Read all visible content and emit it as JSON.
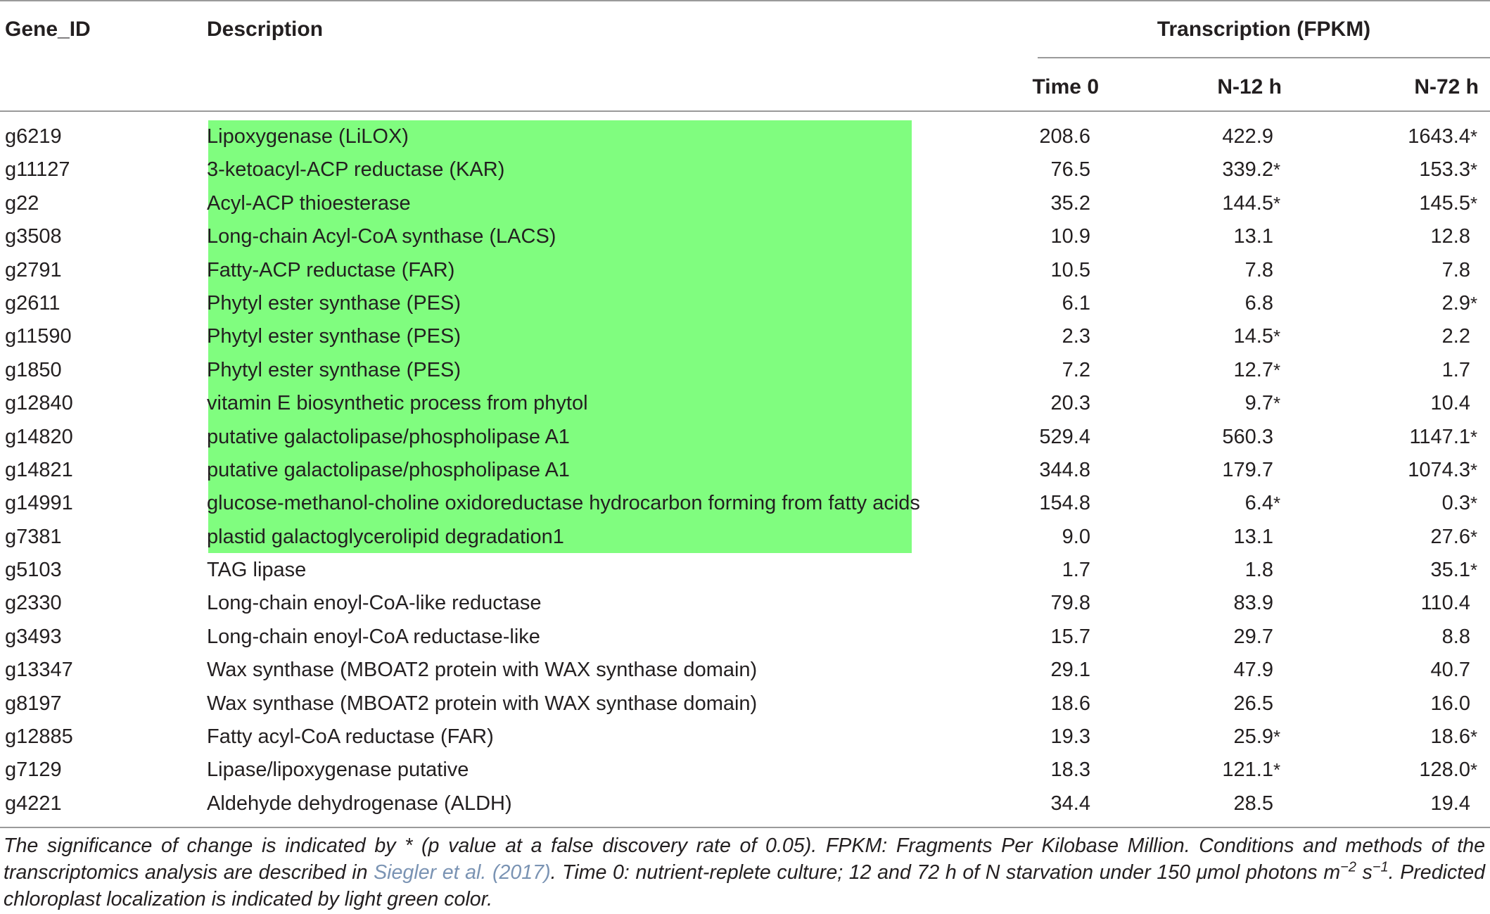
{
  "table": {
    "headers": {
      "gene_id": "Gene_ID",
      "description": "Description",
      "span": "Transcription (FPKM)",
      "time0": "Time 0",
      "n12": "N-12 h",
      "n72": "N-72 h"
    },
    "highlight_color": "#80fd7f",
    "rows": [
      {
        "gene": "g6219",
        "desc": "Lipoxygenase (LiLOX)",
        "t0": "208.6",
        "t0s": "",
        "n12": "422.9",
        "n12s": "",
        "n72": "1643.4",
        "n72s": "*",
        "chloroplast": true
      },
      {
        "gene": "g11127",
        "desc": "3-ketoacyl-ACP reductase (KAR)",
        "t0": "76.5",
        "t0s": "",
        "n12": "339.2",
        "n12s": "*",
        "n72": "153.3",
        "n72s": "*",
        "chloroplast": true
      },
      {
        "gene": "g22",
        "desc": "Acyl-ACP thioesterase",
        "t0": "35.2",
        "t0s": "",
        "n12": "144.5",
        "n12s": "*",
        "n72": "145.5",
        "n72s": "*",
        "chloroplast": true
      },
      {
        "gene": "g3508",
        "desc": "Long-chain Acyl-CoA synthase (LACS)",
        "t0": "10.9",
        "t0s": "",
        "n12": "13.1",
        "n12s": "",
        "n72": "12.8",
        "n72s": "",
        "chloroplast": true
      },
      {
        "gene": "g2791",
        "desc": "Fatty-ACP reductase (FAR)",
        "t0": "10.5",
        "t0s": "",
        "n12": "7.8",
        "n12s": "",
        "n72": "7.8",
        "n72s": "",
        "chloroplast": true
      },
      {
        "gene": "g2611",
        "desc": "Phytyl ester synthase (PES)",
        "t0": "6.1",
        "t0s": "",
        "n12": "6.8",
        "n12s": "",
        "n72": "2.9",
        "n72s": "*",
        "chloroplast": true
      },
      {
        "gene": "g11590",
        "desc": "Phytyl ester synthase (PES)",
        "t0": "2.3",
        "t0s": "",
        "n12": "14.5",
        "n12s": "*",
        "n72": "2.2",
        "n72s": "",
        "chloroplast": true
      },
      {
        "gene": "g1850",
        "desc": "Phytyl ester synthase (PES)",
        "t0": "7.2",
        "t0s": "",
        "n12": "12.7",
        "n12s": "*",
        "n72": "1.7",
        "n72s": "",
        "chloroplast": true
      },
      {
        "gene": "g12840",
        "desc": "vitamin E biosynthetic process from phytol",
        "t0": "20.3",
        "t0s": "",
        "n12": "9.7",
        "n12s": "*",
        "n72": "10.4",
        "n72s": "",
        "chloroplast": true
      },
      {
        "gene": "g14820",
        "desc": "putative galactolipase/phospholipase A1",
        "t0": "529.4",
        "t0s": "",
        "n12": "560.3",
        "n12s": "",
        "n72": "1147.1",
        "n72s": "*",
        "chloroplast": true
      },
      {
        "gene": "g14821",
        "desc": "putative galactolipase/phospholipase A1",
        "t0": "344.8",
        "t0s": "",
        "n12": "179.7",
        "n12s": "",
        "n72": "1074.3",
        "n72s": "*",
        "chloroplast": true
      },
      {
        "gene": "g14991",
        "desc": "glucose-methanol-choline oxidoreductase hydrocarbon forming from fatty acids",
        "t0": "154.8",
        "t0s": "",
        "n12": "6.4",
        "n12s": "*",
        "n72": "0.3",
        "n72s": "*",
        "chloroplast": true
      },
      {
        "gene": "g7381",
        "desc": "plastid galactoglycerolipid degradation1",
        "t0": "9.0",
        "t0s": "",
        "n12": "13.1",
        "n12s": "",
        "n72": "27.6",
        "n72s": "*",
        "chloroplast": true
      },
      {
        "gene": "g5103",
        "desc": "TAG lipase",
        "t0": "1.7",
        "t0s": "",
        "n12": "1.8",
        "n12s": "",
        "n72": "35.1",
        "n72s": "*",
        "chloroplast": false
      },
      {
        "gene": "g2330",
        "desc": "Long-chain enoyl-CoA-like reductase",
        "t0": "79.8",
        "t0s": "",
        "n12": "83.9",
        "n12s": "",
        "n72": "110.4",
        "n72s": "",
        "chloroplast": false
      },
      {
        "gene": "g3493",
        "desc": "Long-chain enoyl-CoA reductase-like",
        "t0": "15.7",
        "t0s": "",
        "n12": "29.7",
        "n12s": "",
        "n72": "8.8",
        "n72s": "",
        "chloroplast": false
      },
      {
        "gene": "g13347",
        "desc": "Wax synthase (MBOAT2 protein with WAX synthase domain)",
        "t0": "29.1",
        "t0s": "",
        "n12": "47.9",
        "n12s": "",
        "n72": "40.7",
        "n72s": "",
        "chloroplast": false
      },
      {
        "gene": "g8197",
        "desc": "Wax synthase (MBOAT2 protein with WAX synthase domain)",
        "t0": "18.6",
        "t0s": "",
        "n12": "26.5",
        "n12s": "",
        "n72": "16.0",
        "n72s": "",
        "chloroplast": false
      },
      {
        "gene": "g12885",
        "desc": "Fatty acyl-CoA reductase (FAR)",
        "t0": "19.3",
        "t0s": "",
        "n12": "25.9",
        "n12s": "*",
        "n72": "18.6",
        "n72s": "*",
        "chloroplast": false
      },
      {
        "gene": "g7129",
        "desc": "Lipase/lipoxygenase putative",
        "t0": "18.3",
        "t0s": "",
        "n12": "121.1",
        "n12s": "*",
        "n72": "128.0",
        "n72s": "*",
        "chloroplast": false
      },
      {
        "gene": "g4221",
        "desc": "Aldehyde dehydrogenase (ALDH)",
        "t0": "34.4",
        "t0s": "",
        "n12": "28.5",
        "n12s": "",
        "n72": "19.4",
        "n72s": "",
        "chloroplast": false
      }
    ]
  },
  "footnote": {
    "part1": "The significance of change is indicated by * (p value at a false discovery rate of 0.05). FPKM: Fragments Per Kilobase Million. Conditions and methods of the transcriptomics analysis are described in ",
    "link": "Siegler et al. (2017)",
    "part2": ". Time 0: nutrient-replete culture; 12 and 72 h of N starvation under 150 μmol photons m",
    "exp1": "−2",
    "part3": " s",
    "exp2": "−1",
    "part4": ". Predicted chloroplast localization is indicated by light green color."
  }
}
